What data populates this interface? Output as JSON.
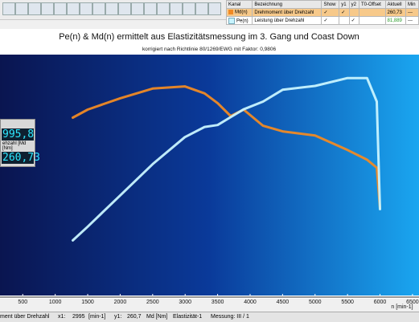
{
  "channel_table": {
    "headers": [
      "Kanal",
      "Bezeichnung",
      "Show",
      "y1",
      "y2",
      "T0-Offset",
      "Aktuell",
      "Min"
    ],
    "rows": [
      [
        "Md(n)",
        "Drehmoment über Drehzahl",
        "260,73",
        "---"
      ],
      [
        "Pe(n)",
        "Leistung über Drehzahl",
        "81,889",
        "---"
      ]
    ]
  },
  "readout": {
    "label": "ehzahl [Md [Nm]",
    "x_value": "995,8",
    "y_value": "260,73"
  },
  "chart_data": {
    "type": "line",
    "title": "Pe(n) & Md(n) ermittelt aus Elastizitätsmessung im 3. Gang und Coast Down",
    "subtitle": "korrigiert nach Richtlinie 80/1269/EWG mit Faktor:  0,9806",
    "x_label": "n [min-1]",
    "x": [
      1270,
      1500,
      2000,
      2500,
      2995,
      3300,
      3500,
      3700,
      3900,
      4200,
      4500,
      5000,
      5500,
      5800,
      5950,
      6000
    ],
    "series": [
      {
        "name": "Md(n)",
        "color": "#f08a24",
        "axis": "y",
        "values": [
          222,
          232,
          246,
          258,
          260.7,
          252,
          240,
          224,
          232,
          212,
          205,
          200,
          182,
          170,
          160,
          110
        ]
      },
      {
        "name": "Pe(n)",
        "color": "#c8f4ff",
        "axis": "y2",
        "values": [
          29,
          36,
          52,
          68,
          81.8,
          87,
          88,
          92,
          96,
          100,
          106,
          108,
          112,
          112,
          100,
          45
        ]
      }
    ],
    "xlim": [
      150,
      6600
    ],
    "xticks": [
      500,
      1000,
      1500,
      2000,
      2500,
      3000,
      3500,
      4000,
      4500,
      5000,
      5500,
      6000,
      6500
    ],
    "ylim": [
      0,
      300
    ],
    "y2lim": [
      0,
      124
    ]
  },
  "status_bar": [
    "ment über Drehzahl",
    "x1:",
    "2995",
    "[min-1]",
    "y1:",
    "260,7",
    "Md [Nm]",
    "Elastizität-1",
    "Messung: III / 1"
  ]
}
